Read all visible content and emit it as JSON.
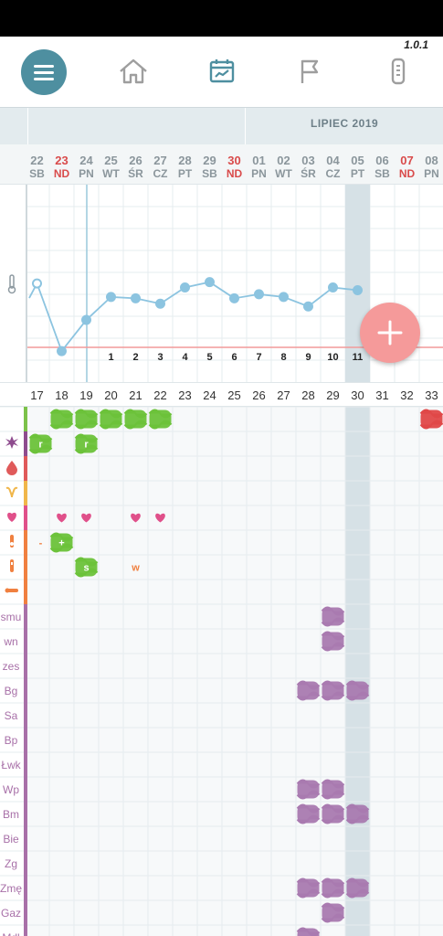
{
  "app": {
    "version": "1.0.1"
  },
  "nav": {
    "menu": "menu-icon",
    "items": [
      "home-icon",
      "chart-calendar-icon",
      "flag-icon",
      "thermometer-device-icon"
    ],
    "accent": "#4e8fa0",
    "inactive": "#9e9e9e"
  },
  "month": {
    "label": "LIPIEC 2019"
  },
  "days": [
    {
      "num": "22",
      "wd": "SB",
      "red": false
    },
    {
      "num": "23",
      "wd": "ND",
      "red": true
    },
    {
      "num": "24",
      "wd": "PN",
      "red": false
    },
    {
      "num": "25",
      "wd": "WT",
      "red": false
    },
    {
      "num": "26",
      "wd": "ŚR",
      "red": false
    },
    {
      "num": "27",
      "wd": "CZ",
      "red": false
    },
    {
      "num": "28",
      "wd": "PT",
      "red": false
    },
    {
      "num": "29",
      "wd": "SB",
      "red": false
    },
    {
      "num": "30",
      "wd": "ND",
      "red": true
    },
    {
      "num": "01",
      "wd": "PN",
      "red": false
    },
    {
      "num": "02",
      "wd": "WT",
      "red": false
    },
    {
      "num": "03",
      "wd": "ŚR",
      "red": false
    },
    {
      "num": "04",
      "wd": "CZ",
      "red": false
    },
    {
      "num": "05",
      "wd": "PT",
      "red": false
    },
    {
      "num": "06",
      "wd": "SB",
      "red": false
    },
    {
      "num": "07",
      "wd": "ND",
      "red": true
    },
    {
      "num": "08",
      "wd": "PN",
      "red": false
    }
  ],
  "selected_day_index": 13,
  "temperature": {
    "icon": "thermometer-icon",
    "level": [
      0.54,
      0.04,
      0.27,
      0.44,
      0.43,
      0.39,
      0.51,
      0.55,
      0.43,
      0.46,
      0.44,
      0.37,
      0.51,
      0.49
    ],
    "open_point_index": 0,
    "after_cursor_labels": [
      "1",
      "2",
      "3",
      "4",
      "5",
      "6",
      "7",
      "8",
      "9",
      "10",
      "11"
    ],
    "line_color": "#8cc4e0",
    "baseline_color": "#f29a9a"
  },
  "cycle_days": [
    "17",
    "18",
    "19",
    "20",
    "21",
    "22",
    "23",
    "24",
    "25",
    "26",
    "27",
    "28",
    "29",
    "30",
    "31",
    "32",
    "33"
  ],
  "rows": [
    {
      "type": "icon",
      "icon": "bleeding-color-icon",
      "color": "#7cc24a",
      "label": ""
    },
    {
      "type": "icon",
      "icon": "mucus-splat-icon",
      "color": "#8e4c8e",
      "label": ""
    },
    {
      "type": "icon",
      "icon": "drop-icon",
      "color": "#e05a5a",
      "label": ""
    },
    {
      "type": "icon",
      "icon": "uterus-icon",
      "color": "#f0b64a",
      "label": ""
    },
    {
      "type": "icon",
      "icon": "heart-icon",
      "color": "#e0508a",
      "label": ""
    },
    {
      "type": "icon",
      "icon": "test-plus-icon",
      "color": "#f08040",
      "label": ""
    },
    {
      "type": "icon",
      "icon": "test-strip-icon",
      "color": "#f08040",
      "label": ""
    },
    {
      "type": "icon",
      "icon": "thermometer-stick-icon",
      "color": "#f08040",
      "label": ""
    },
    {
      "type": "text",
      "label": "smu",
      "color": "#a870a8"
    },
    {
      "type": "text",
      "label": "wn",
      "color": "#a870a8"
    },
    {
      "type": "text",
      "label": "zes",
      "color": "#a870a8"
    },
    {
      "type": "text",
      "label": "Bg",
      "color": "#a870a8"
    },
    {
      "type": "text",
      "label": "Sa",
      "color": "#a870a8"
    },
    {
      "type": "text",
      "label": "Bp",
      "color": "#a870a8"
    },
    {
      "type": "text",
      "label": "Łwk",
      "color": "#a870a8"
    },
    {
      "type": "text",
      "label": "Wp",
      "color": "#a870a8"
    },
    {
      "type": "text",
      "label": "Bm",
      "color": "#a870a8"
    },
    {
      "type": "text",
      "label": "Bie",
      "color": "#a870a8"
    },
    {
      "type": "text",
      "label": "Zg",
      "color": "#a870a8"
    },
    {
      "type": "text",
      "label": "Zmę",
      "color": "#a870a8"
    },
    {
      "type": "text",
      "label": "Gaz",
      "color": "#a870a8"
    },
    {
      "type": "text",
      "label": "Mdl",
      "color": "#a870a8"
    }
  ],
  "cells": [
    {
      "row": 0,
      "col": 1,
      "kind": "scribble",
      "color": "#6cc23a"
    },
    {
      "row": 0,
      "col": 2,
      "kind": "scribble",
      "color": "#6cc23a"
    },
    {
      "row": 0,
      "col": 3,
      "kind": "scribble",
      "color": "#6cc23a"
    },
    {
      "row": 0,
      "col": 4,
      "kind": "scribble",
      "color": "#6cc23a"
    },
    {
      "row": 0,
      "col": 5,
      "kind": "scribble",
      "color": "#6cc23a"
    },
    {
      "row": 0,
      "col": 16,
      "kind": "scribble",
      "color": "#e04848"
    },
    {
      "row": 1,
      "col": 0,
      "kind": "scribble",
      "color": "#6cc23a",
      "text": "r"
    },
    {
      "row": 1,
      "col": 2,
      "kind": "scribble",
      "color": "#6cc23a",
      "text": "r"
    },
    {
      "row": 4,
      "col": 1,
      "kind": "heart",
      "color": "#e0508a"
    },
    {
      "row": 4,
      "col": 2,
      "kind": "heart",
      "color": "#e0508a"
    },
    {
      "row": 4,
      "col": 4,
      "kind": "heart",
      "color": "#e0508a"
    },
    {
      "row": 4,
      "col": 5,
      "kind": "heart",
      "color": "#e0508a"
    },
    {
      "row": 5,
      "col": 0,
      "kind": "text",
      "color": "#f08040",
      "text": "-"
    },
    {
      "row": 5,
      "col": 1,
      "kind": "scribble",
      "color": "#6cc23a",
      "text": "+"
    },
    {
      "row": 6,
      "col": 2,
      "kind": "scribble",
      "color": "#6cc23a",
      "text": "s"
    },
    {
      "row": 6,
      "col": 4,
      "kind": "text",
      "color": "#f08040",
      "text": "w"
    },
    {
      "row": 8,
      "col": 12,
      "kind": "scribble",
      "color": "#a97ab0"
    },
    {
      "row": 9,
      "col": 12,
      "kind": "scribble",
      "color": "#a97ab0"
    },
    {
      "row": 11,
      "col": 11,
      "kind": "scribble",
      "color": "#a97ab0"
    },
    {
      "row": 11,
      "col": 12,
      "kind": "scribble",
      "color": "#a97ab0"
    },
    {
      "row": 11,
      "col": 13,
      "kind": "scribble",
      "color": "#a97ab0"
    },
    {
      "row": 15,
      "col": 11,
      "kind": "scribble",
      "color": "#a97ab0"
    },
    {
      "row": 15,
      "col": 12,
      "kind": "scribble",
      "color": "#a97ab0"
    },
    {
      "row": 16,
      "col": 11,
      "kind": "scribble",
      "color": "#a97ab0"
    },
    {
      "row": 16,
      "col": 12,
      "kind": "scribble",
      "color": "#a97ab0"
    },
    {
      "row": 16,
      "col": 13,
      "kind": "scribble",
      "color": "#a97ab0"
    },
    {
      "row": 19,
      "col": 11,
      "kind": "scribble",
      "color": "#a97ab0"
    },
    {
      "row": 19,
      "col": 12,
      "kind": "scribble",
      "color": "#a97ab0"
    },
    {
      "row": 19,
      "col": 13,
      "kind": "scribble",
      "color": "#a97ab0"
    },
    {
      "row": 20,
      "col": 12,
      "kind": "scribble",
      "color": "#a97ab0"
    },
    {
      "row": 21,
      "col": 11,
      "kind": "scribble",
      "color": "#a97ab0"
    }
  ],
  "fab": {
    "icon": "plus-icon",
    "color": "#f59a9a"
  }
}
